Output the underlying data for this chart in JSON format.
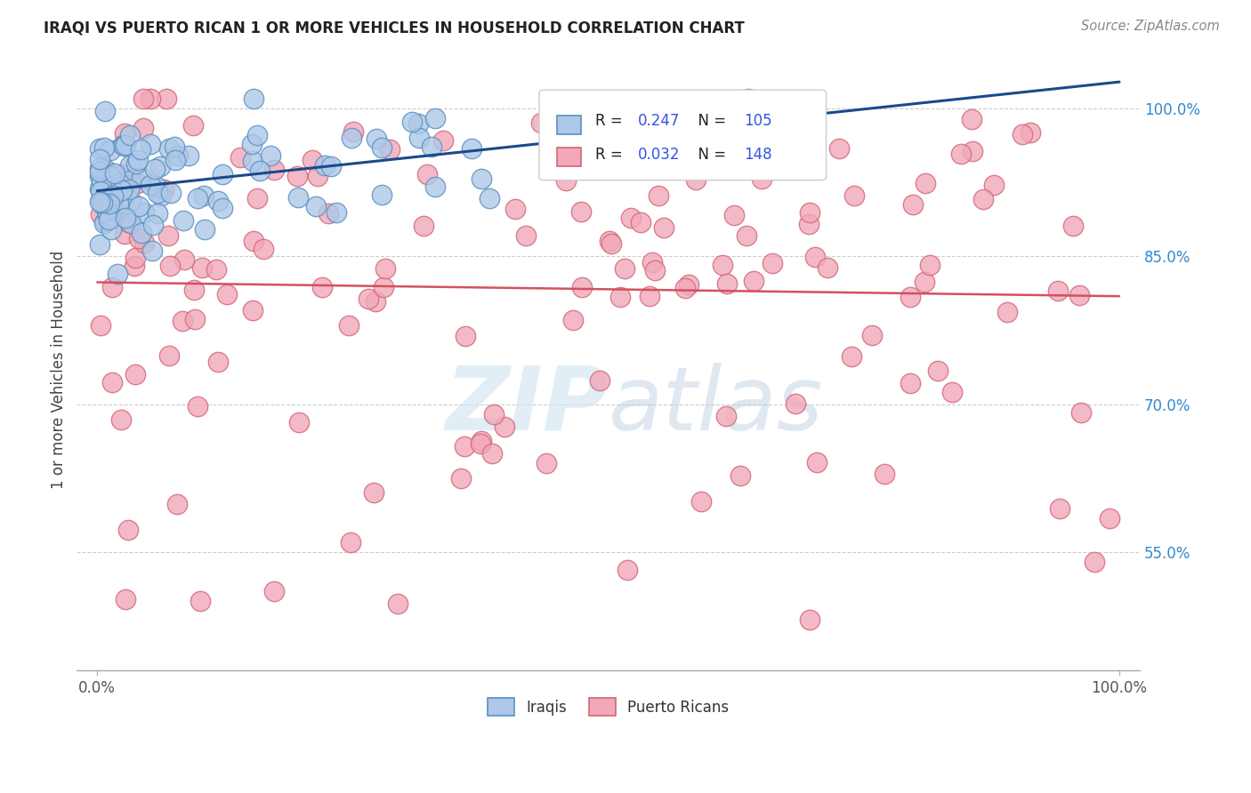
{
  "title": "IRAQI VS PUERTO RICAN 1 OR MORE VEHICLES IN HOUSEHOLD CORRELATION CHART",
  "source": "Source: ZipAtlas.com",
  "ylabel": "1 or more Vehicles in Household",
  "xlim": [
    -2,
    102
  ],
  "ylim": [
    43,
    104
  ],
  "ytick_labels": [
    "55.0%",
    "70.0%",
    "85.0%",
    "100.0%"
  ],
  "ytick_values": [
    55,
    70,
    85,
    100
  ],
  "iraqi_color": "#adc8e8",
  "puerto_rican_color": "#f2a8b8",
  "iraqi_edge_color": "#5a8fc0",
  "puerto_rican_edge_color": "#d06878",
  "iraqi_trend_color": "#1a4a8a",
  "puerto_rican_trend_color": "#d45060",
  "watermark_color": "#d0e4f0",
  "background_color": "#ffffff",
  "grid_color": "#cccccc",
  "r1_val": "0.247",
  "n1_val": "105",
  "r2_val": "0.032",
  "n2_val": "148",
  "legend_val_color": "#3355dd",
  "title_color": "#222222",
  "source_color": "#888888",
  "ylabel_color": "#444444",
  "ytick_color": "#3388cc",
  "xtick_color": "#555555"
}
